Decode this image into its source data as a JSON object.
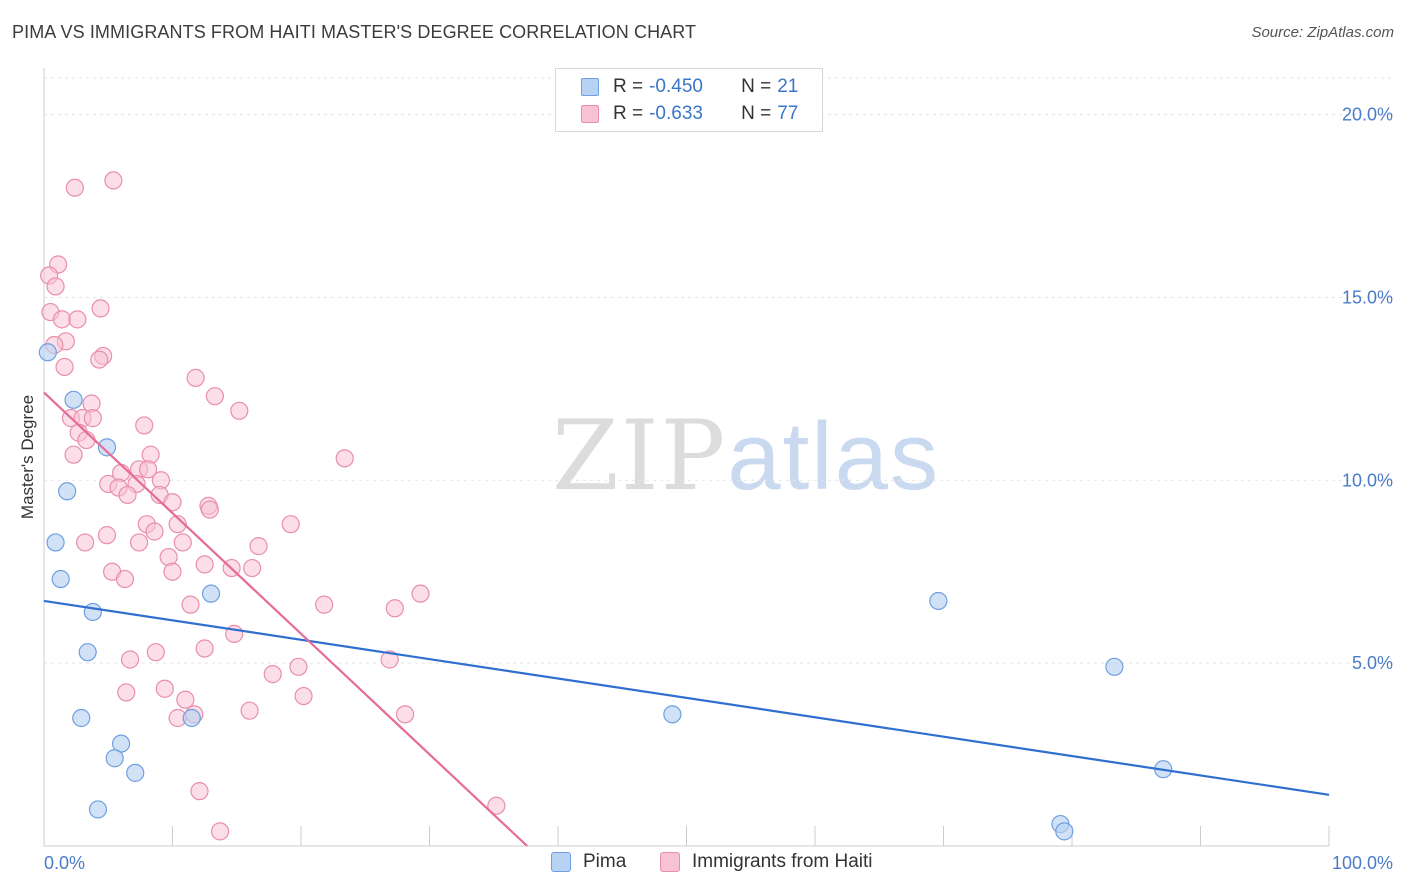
{
  "title": "PIMA VS IMMIGRANTS FROM HAITI MASTER'S DEGREE CORRELATION CHART",
  "source": "Source: ZipAtlas.com",
  "watermark": {
    "zip": "ZIP",
    "atlas": "atlas"
  },
  "legend": {
    "rows": [
      {
        "r_label": "R = ",
        "r_value": "-0.450",
        "n_label": "N = ",
        "n_value": "21"
      },
      {
        "r_label": "R = ",
        "r_value": "-0.633",
        "n_label": "N = ",
        "n_value": "77"
      }
    ]
  },
  "bottom_legend": [
    "Pima",
    "Immigrants from Haiti"
  ],
  "colors": {
    "pima_fill": "#b8d2f3",
    "pima_stroke": "#6f9fe0",
    "pima_line": "#2f6fd0",
    "haiti_fill": "#f7c3d4",
    "haiti_stroke": "#e98eac",
    "haiti_line": "#e56c97",
    "grid": "#e3e3e3",
    "axis_label": "#4a7cc7"
  },
  "chart_data": {
    "type": "scatter",
    "title": "PIMA VS IMMIGRANTS FROM HAITI MASTER'S DEGREE CORRELATION CHART",
    "xlabel": "",
    "ylabel": "Master's Degree",
    "xlim": [
      0,
      100
    ],
    "ylim": [
      0,
      21
    ],
    "x_ticks": [
      "0.0%",
      "100.0%"
    ],
    "y_ticks": [
      {
        "value": 5,
        "label": "5.0%"
      },
      {
        "value": 10,
        "label": "10.0%"
      },
      {
        "value": 15,
        "label": "15.0%"
      },
      {
        "value": 20,
        "label": "20.0%"
      }
    ],
    "grid": "horizontal dashed",
    "legend_position": "top-center",
    "series": [
      {
        "name": "Pima",
        "color": "#6f9fe0",
        "points": [
          [
            0.3,
            13.5
          ],
          [
            2.3,
            12.2
          ],
          [
            4.9,
            10.9
          ],
          [
            1.8,
            9.7
          ],
          [
            0.9,
            8.3
          ],
          [
            1.3,
            7.3
          ],
          [
            3.8,
            6.4
          ],
          [
            3.4,
            5.3
          ],
          [
            13.0,
            6.9
          ],
          [
            2.9,
            3.5
          ],
          [
            6.0,
            2.8
          ],
          [
            5.5,
            2.4
          ],
          [
            7.1,
            2.0
          ],
          [
            4.2,
            1.0
          ],
          [
            11.5,
            3.5
          ],
          [
            48.9,
            3.6
          ],
          [
            69.6,
            6.7
          ],
          [
            83.3,
            4.9
          ],
          [
            87.1,
            2.1
          ],
          [
            79.1,
            0.6
          ],
          [
            79.4,
            0.4
          ]
        ],
        "trend": {
          "x": [
            0,
            100
          ],
          "y": [
            6.7,
            1.4
          ]
        }
      },
      {
        "name": "Immigrants from Haiti",
        "color": "#e98eac",
        "points": [
          [
            5.4,
            18.2
          ],
          [
            2.4,
            18.0
          ],
          [
            1.1,
            15.9
          ],
          [
            0.4,
            15.6
          ],
          [
            0.9,
            15.3
          ],
          [
            0.5,
            14.6
          ],
          [
            1.4,
            14.4
          ],
          [
            4.4,
            14.7
          ],
          [
            2.6,
            14.4
          ],
          [
            1.7,
            13.8
          ],
          [
            0.8,
            13.7
          ],
          [
            4.6,
            13.4
          ],
          [
            4.3,
            13.3
          ],
          [
            1.6,
            13.1
          ],
          [
            11.8,
            12.8
          ],
          [
            13.3,
            12.3
          ],
          [
            3.7,
            12.1
          ],
          [
            15.2,
            11.9
          ],
          [
            2.1,
            11.7
          ],
          [
            3.0,
            11.7
          ],
          [
            3.8,
            11.7
          ],
          [
            7.8,
            11.5
          ],
          [
            2.7,
            11.3
          ],
          [
            3.3,
            11.1
          ],
          [
            2.3,
            10.7
          ],
          [
            8.3,
            10.7
          ],
          [
            23.4,
            10.6
          ],
          [
            6.0,
            10.2
          ],
          [
            7.4,
            10.3
          ],
          [
            8.1,
            10.3
          ],
          [
            5.0,
            9.9
          ],
          [
            7.2,
            9.9
          ],
          [
            9.1,
            10.0
          ],
          [
            5.8,
            9.8
          ],
          [
            6.5,
            9.6
          ],
          [
            9.0,
            9.6
          ],
          [
            10.0,
            9.4
          ],
          [
            12.8,
            9.3
          ],
          [
            12.9,
            9.2
          ],
          [
            8.0,
            8.8
          ],
          [
            10.4,
            8.8
          ],
          [
            19.2,
            8.8
          ],
          [
            8.6,
            8.6
          ],
          [
            4.9,
            8.5
          ],
          [
            3.2,
            8.3
          ],
          [
            7.4,
            8.3
          ],
          [
            10.8,
            8.3
          ],
          [
            16.7,
            8.2
          ],
          [
            9.7,
            7.9
          ],
          [
            12.5,
            7.7
          ],
          [
            14.6,
            7.6
          ],
          [
            16.2,
            7.6
          ],
          [
            5.3,
            7.5
          ],
          [
            10.0,
            7.5
          ],
          [
            6.3,
            7.3
          ],
          [
            29.3,
            6.9
          ],
          [
            11.4,
            6.6
          ],
          [
            21.8,
            6.6
          ],
          [
            27.3,
            6.5
          ],
          [
            14.8,
            5.8
          ],
          [
            8.7,
            5.3
          ],
          [
            12.5,
            5.4
          ],
          [
            6.7,
            5.1
          ],
          [
            26.9,
            5.1
          ],
          [
            19.8,
            4.9
          ],
          [
            17.8,
            4.7
          ],
          [
            9.4,
            4.3
          ],
          [
            6.4,
            4.2
          ],
          [
            20.2,
            4.1
          ],
          [
            11.0,
            4.0
          ],
          [
            16.0,
            3.7
          ],
          [
            28.1,
            3.6
          ],
          [
            10.4,
            3.5
          ],
          [
            11.7,
            3.6
          ],
          [
            12.1,
            1.5
          ],
          [
            35.2,
            1.1
          ],
          [
            13.7,
            0.4
          ]
        ],
        "trend": {
          "x": [
            0,
            37.6
          ],
          "y": [
            12.4,
            0
          ]
        }
      }
    ]
  }
}
